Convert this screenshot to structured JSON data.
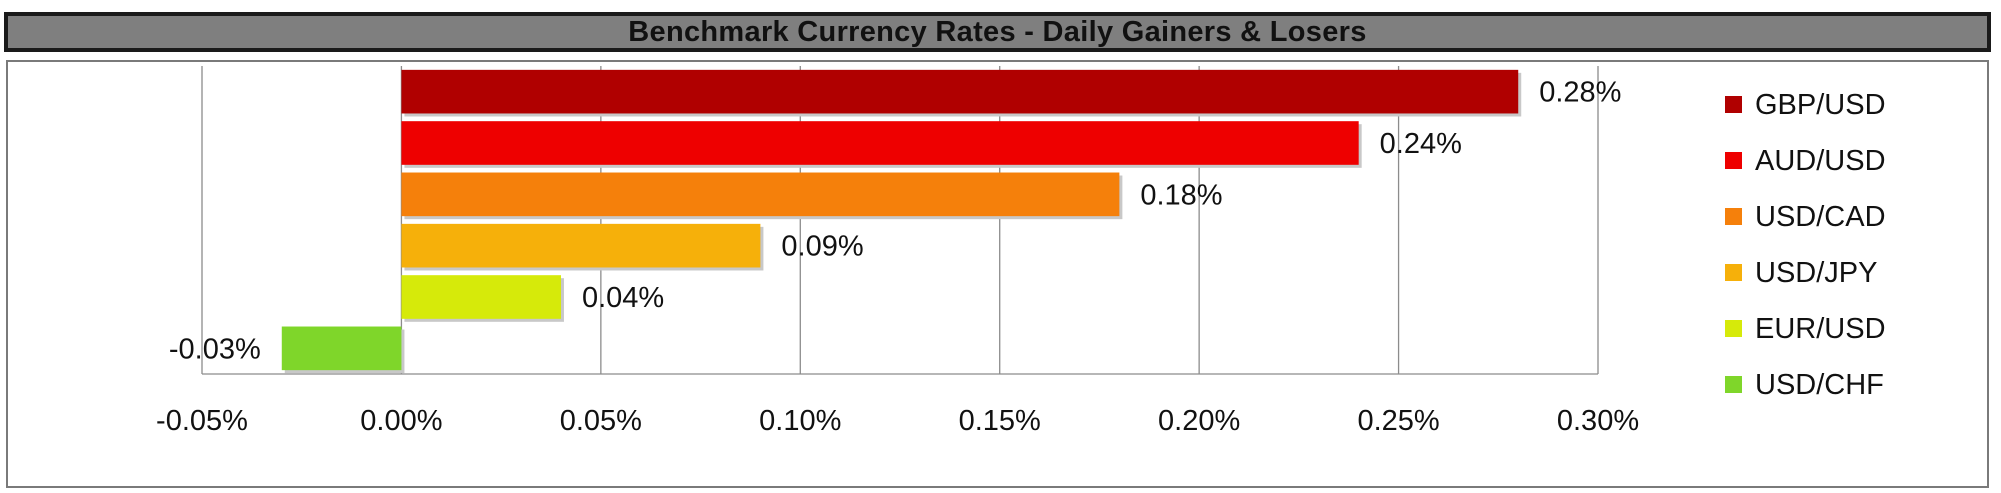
{
  "title": "Benchmark Currency Rates - Daily Gainers & Losers",
  "chart_data": {
    "type": "bar",
    "orientation": "horizontal",
    "title": "Benchmark Currency Rates - Daily Gainers & Losers",
    "categories": [
      "GBP/USD",
      "AUD/USD",
      "USD/CAD",
      "USD/JPY",
      "EUR/USD",
      "USD/CHF"
    ],
    "values": [
      0.28,
      0.24,
      0.18,
      0.09,
      0.04,
      -0.03
    ],
    "data_labels": [
      "0.28%",
      "0.24%",
      "0.18%",
      "0.09%",
      "0.04%",
      "-0.03%"
    ],
    "colors": [
      "#b00000",
      "#ee0000",
      "#f5800b",
      "#f6b00a",
      "#d6ea0a",
      "#7fd62a"
    ],
    "xlim": [
      -0.05,
      0.3
    ],
    "xticks": [
      -0.05,
      0.0,
      0.05,
      0.1,
      0.15,
      0.2,
      0.25,
      0.3
    ],
    "xtick_labels": [
      "-0.05%",
      "0.00%",
      "0.05%",
      "0.10%",
      "0.15%",
      "0.20%",
      "0.25%",
      "0.30%"
    ],
    "xlabel": "",
    "ylabel": "",
    "grid": "vertical",
    "legend_position": "right"
  }
}
